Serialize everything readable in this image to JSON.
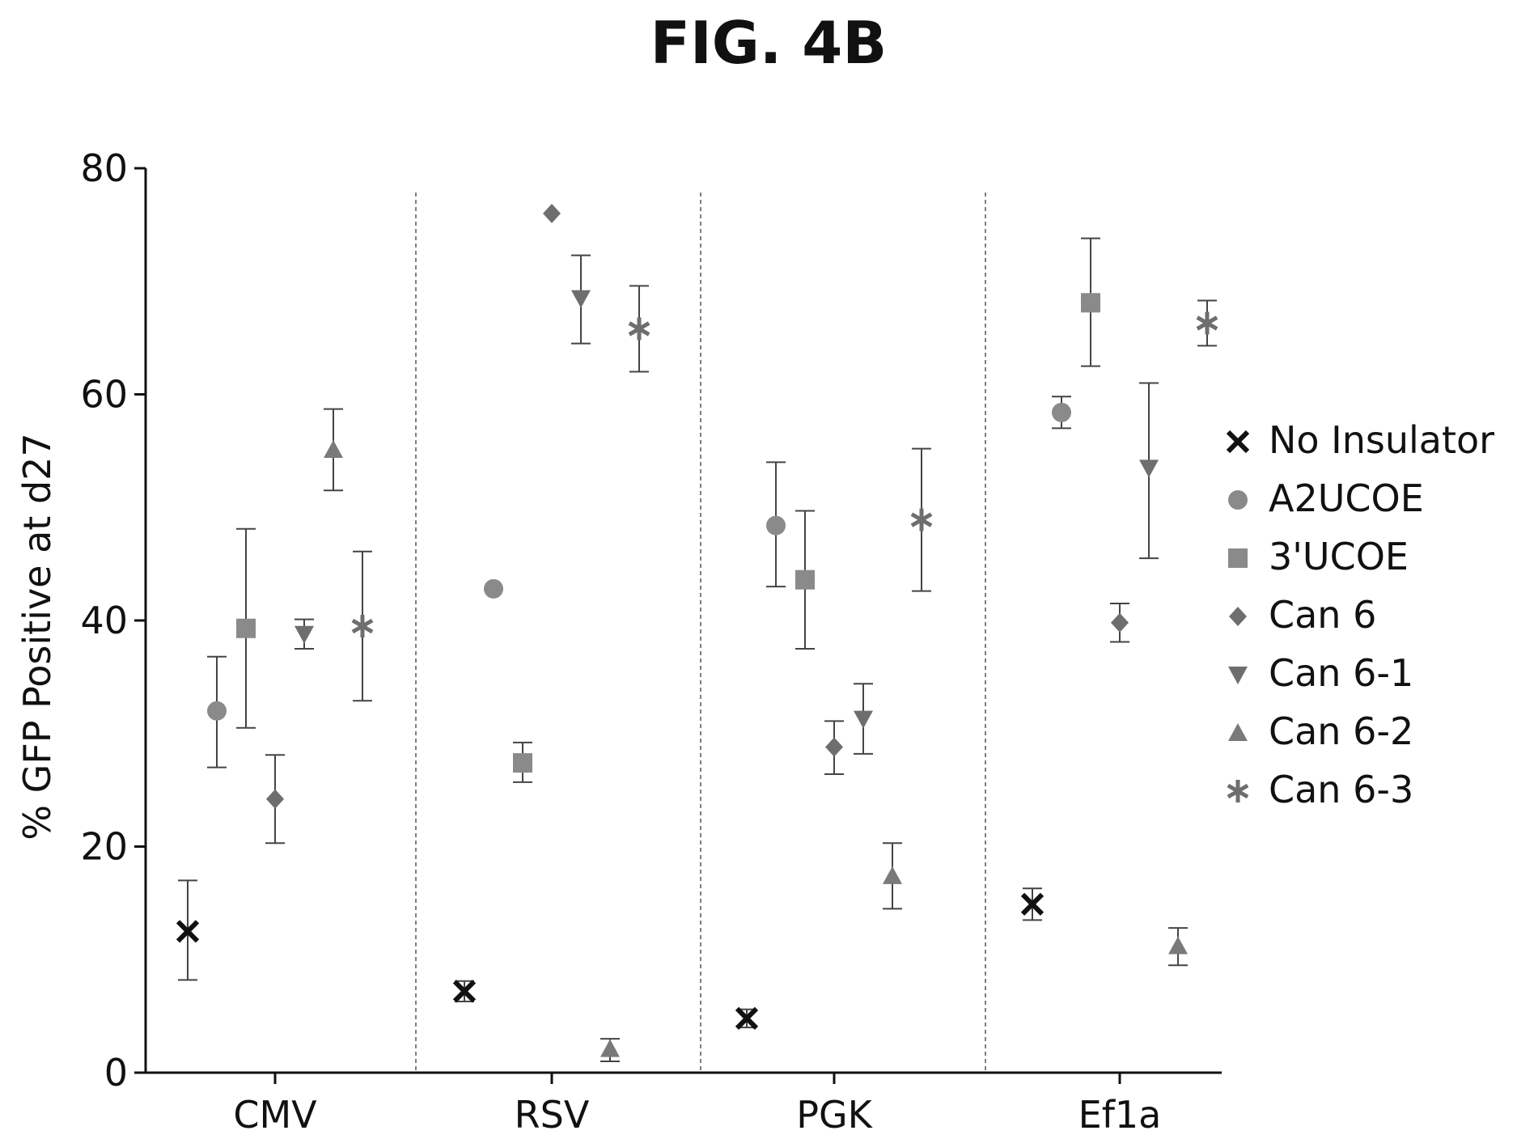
{
  "figure_title": "FIG. 4B",
  "chart_data": {
    "type": "scatter",
    "title": "FIG. 4B",
    "xlabel": "",
    "ylabel": "% GFP Positive at d27",
    "ylim": [
      0,
      80
    ],
    "yticks": [
      0,
      20,
      40,
      60,
      80
    ],
    "categories": [
      "CMV",
      "RSV",
      "PGK",
      "Ef1a"
    ],
    "legend_position": "right",
    "grid": false,
    "group_separators": "dashed",
    "series": [
      {
        "name": "No Insulator",
        "marker": "x",
        "color": "#111111",
        "values": [
          12.5,
          7.2,
          4.8,
          14.9
        ],
        "error": [
          [
            8.2,
            17.0
          ],
          [
            6.3,
            8.1
          ],
          [
            4.0,
            5.6
          ],
          [
            13.5,
            16.3
          ]
        ]
      },
      {
        "name": "A2UCOE",
        "marker": "circle",
        "color": "#8a8a8a",
        "values": [
          32.0,
          42.8,
          48.4,
          58.4
        ],
        "error": [
          [
            27.0,
            36.8
          ],
          null,
          [
            43.0,
            54.0
          ],
          [
            57.0,
            59.8
          ]
        ]
      },
      {
        "name": "3'UCOE",
        "marker": "square",
        "color": "#8a8a8a",
        "values": [
          39.3,
          27.4,
          43.6,
          68.1
        ],
        "error": [
          [
            30.5,
            48.1
          ],
          [
            25.7,
            29.2
          ],
          [
            37.5,
            49.7
          ],
          [
            62.5,
            73.8
          ]
        ]
      },
      {
        "name": "Can 6",
        "marker": "diamond",
        "color": "#6e6e6e",
        "values": [
          24.2,
          76.0,
          28.8,
          39.8
        ],
        "error": [
          [
            20.3,
            28.1
          ],
          null,
          [
            26.4,
            31.1
          ],
          [
            38.1,
            41.5
          ]
        ]
      },
      {
        "name": "Can 6-1",
        "marker": "triangle-down",
        "color": "#6e6e6e",
        "values": [
          38.8,
          68.5,
          31.3,
          53.5
        ],
        "error": [
          [
            37.5,
            40.1
          ],
          [
            64.5,
            72.3
          ],
          [
            28.2,
            34.4
          ],
          [
            45.5,
            61.0
          ]
        ]
      },
      {
        "name": "Can 6-2",
        "marker": "triangle-up",
        "color": "#7a7a7a",
        "values": [
          55.1,
          2.1,
          17.4,
          11.2
        ],
        "error": [
          [
            51.5,
            58.7
          ],
          [
            1.0,
            3.0
          ],
          [
            14.5,
            20.3
          ],
          [
            9.5,
            12.8
          ]
        ]
      },
      {
        "name": "Can 6-3",
        "marker": "asterisk",
        "color": "#6e6e6e",
        "values": [
          39.5,
          65.8,
          48.9,
          66.3
        ],
        "error": [
          [
            32.9,
            46.1
          ],
          [
            62.0,
            69.6
          ],
          [
            42.6,
            55.2
          ],
          [
            64.3,
            68.3
          ]
        ]
      }
    ]
  }
}
